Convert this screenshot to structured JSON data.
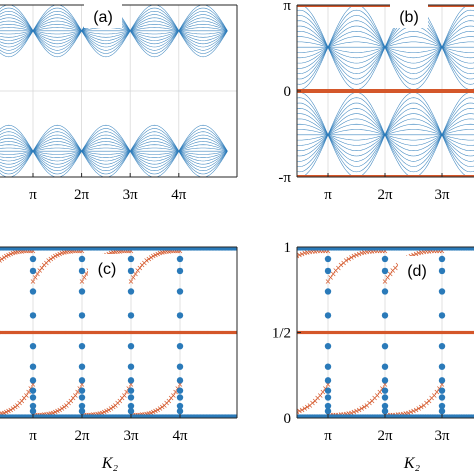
{
  "colors": {
    "blue": "#2a7ab9",
    "orange": "#d4572a",
    "grid": "#d9d9d9",
    "axis": "#262626"
  },
  "chart_data": [
    {
      "id": "a",
      "type": "scatter",
      "panel_label": "(a)",
      "xlabel": "",
      "xlim": [
        0,
        5.2
      ],
      "ylim": [
        -3.1416,
        3.1416
      ],
      "x_tick_values": [
        1,
        2,
        3,
        4
      ],
      "x_tick_labels": [
        "π",
        "2π",
        "3π",
        "4π"
      ],
      "y_tick_values": [],
      "y_tick_labels": [],
      "grid": true,
      "series": [
        {
          "role": "quasienergy-bands",
          "color": "blue",
          "description_kind": "band-fan",
          "crossings_x": [
            0,
            1,
            2,
            3,
            4,
            5
          ],
          "band_center": 2.2,
          "band_half_width_max": 0.85
        }
      ]
    },
    {
      "id": "b",
      "type": "scatter",
      "panel_label": "(b)",
      "xlabel": "",
      "xlim": [
        0.6,
        4
      ],
      "ylim": [
        -3.1416,
        3.1416
      ],
      "x_tick_values": [
        1,
        2,
        3
      ],
      "x_tick_labels": [
        "π",
        "2π",
        "3π"
      ],
      "y_tick_values": [
        3.1416,
        0,
        -3.1416
      ],
      "y_tick_labels": [
        "π",
        "0",
        "-π"
      ],
      "grid": true,
      "series": [
        {
          "role": "quasienergy-bands",
          "color": "blue",
          "crossings_x": [
            1,
            2,
            3
          ]
        },
        {
          "role": "edge-states",
          "color": "orange",
          "y_values": [
            3.1416,
            0,
            -3.1416
          ]
        }
      ]
    },
    {
      "id": "c",
      "type": "scatter",
      "panel_label": "(c)",
      "xlabel": "K₂",
      "xlim": [
        0,
        5.2
      ],
      "ylim": [
        0,
        1
      ],
      "x_tick_values": [
        1,
        2,
        3,
        4
      ],
      "x_tick_labels": [
        "π",
        "2π",
        "3π",
        "4π"
      ],
      "y_tick_values": [],
      "y_tick_labels": [],
      "grid": true,
      "series": [
        {
          "role": "winding-blue",
          "color": "blue",
          "levels": [
            0,
            0.5,
            1
          ],
          "transitions_x": [
            1,
            2,
            3,
            4
          ]
        },
        {
          "role": "winding-orange",
          "color": "orange",
          "levels": [
            0,
            0.5,
            1
          ],
          "transitions_x": [
            1,
            2,
            3,
            4
          ]
        }
      ]
    },
    {
      "id": "d",
      "type": "scatter",
      "panel_label": "(d)",
      "xlabel": "K₂",
      "xlim": [
        0.6,
        4
      ],
      "ylim": [
        0,
        1
      ],
      "x_tick_values": [
        1,
        2,
        3
      ],
      "x_tick_labels": [
        "π",
        "2π",
        "3π"
      ],
      "y_tick_values": [
        1,
        0.5,
        0
      ],
      "y_tick_labels": [
        "1",
        "1/2",
        "0"
      ],
      "grid": true,
      "series": [
        {
          "role": "winding-blue",
          "color": "blue",
          "levels": [
            0,
            1
          ],
          "transitions_x": [
            1,
            2,
            3
          ]
        },
        {
          "role": "winding-orange",
          "color": "orange",
          "levels": [
            0,
            0.5,
            1
          ],
          "transitions_x": [
            1,
            2,
            3
          ]
        }
      ]
    }
  ]
}
